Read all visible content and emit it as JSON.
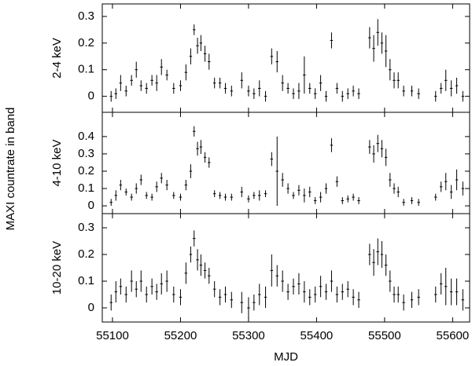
{
  "ylabel": "MAXI countrate in band",
  "chart_data": [
    {
      "type": "errorbar",
      "ylabel": "2-4 keV",
      "color": "#000000",
      "xerr": 2,
      "xlim": [
        55085,
        55625
      ],
      "xticks": [
        55100,
        55200,
        55300,
        55400,
        55500,
        55600
      ],
      "ylim": [
        -0.06,
        0.347
      ],
      "yticks": [
        0,
        0.1,
        0.2,
        0.3
      ],
      "x": [
        55098,
        55105,
        55112,
        55120,
        55128,
        55135,
        55142,
        55150,
        55158,
        55165,
        55172,
        55180,
        55190,
        55200,
        55208,
        55215,
        55220,
        55225,
        55230,
        55236,
        55242,
        55250,
        55258,
        55266,
        55275,
        55290,
        55300,
        55308,
        55316,
        55325,
        55334,
        55342,
        55350,
        55358,
        55366,
        55374,
        55382,
        55390,
        55398,
        55406,
        55414,
        55422,
        55430,
        55438,
        55446,
        55454,
        55462,
        55478,
        55484,
        55490,
        55496,
        55502,
        55508,
        55514,
        55520,
        55528,
        55540,
        55550,
        55575,
        55583,
        55590,
        55598,
        55606,
        55615
      ],
      "values": [
        0.0,
        0.01,
        0.05,
        0.02,
        0.06,
        0.1,
        0.04,
        0.03,
        0.06,
        0.05,
        0.11,
        0.08,
        0.03,
        0.04,
        0.09,
        0.15,
        0.25,
        0.19,
        0.2,
        0.16,
        0.13,
        0.05,
        0.05,
        0.03,
        0.02,
        0.06,
        0.02,
        0.01,
        0.03,
        0.0,
        0.15,
        0.13,
        0.05,
        0.03,
        0.01,
        0.02,
        0.08,
        0.03,
        0.01,
        0.05,
        0.0,
        0.21,
        0.03,
        0.0,
        0.01,
        0.02,
        0.01,
        0.22,
        0.18,
        0.24,
        0.2,
        0.17,
        0.1,
        0.06,
        0.06,
        0.02,
        0.02,
        0.01,
        0.0,
        0.03,
        0.06,
        0.03,
        0.04,
        0.0
      ],
      "errors": [
        0.02,
        0.02,
        0.03,
        0.02,
        0.02,
        0.03,
        0.02,
        0.02,
        0.02,
        0.03,
        0.03,
        0.02,
        0.02,
        0.02,
        0.03,
        0.03,
        0.02,
        0.03,
        0.03,
        0.03,
        0.03,
        0.02,
        0.02,
        0.02,
        0.02,
        0.03,
        0.02,
        0.02,
        0.03,
        0.02,
        0.03,
        0.04,
        0.03,
        0.02,
        0.02,
        0.03,
        0.07,
        0.02,
        0.02,
        0.03,
        0.02,
        0.03,
        0.02,
        0.02,
        0.02,
        0.02,
        0.02,
        0.04,
        0.05,
        0.05,
        0.04,
        0.06,
        0.04,
        0.03,
        0.03,
        0.02,
        0.02,
        0.02,
        0.02,
        0.02,
        0.04,
        0.03,
        0.03,
        0.02
      ]
    },
    {
      "type": "errorbar",
      "ylabel": "4-10 keV",
      "color": "#000000",
      "xerr": 2,
      "xlim": [
        55085,
        55625
      ],
      "xticks": [
        55100,
        55200,
        55300,
        55400,
        55500,
        55600
      ],
      "ylim": [
        -0.045,
        0.54
      ],
      "yticks": [
        0,
        0.1,
        0.2,
        0.3,
        0.4
      ],
      "x": [
        55098,
        55105,
        55112,
        55120,
        55128,
        55135,
        55142,
        55150,
        55158,
        55165,
        55172,
        55180,
        55190,
        55200,
        55208,
        55215,
        55220,
        55225,
        55230,
        55236,
        55242,
        55250,
        55258,
        55266,
        55275,
        55290,
        55300,
        55308,
        55316,
        55325,
        55334,
        55342,
        55350,
        55358,
        55366,
        55374,
        55382,
        55390,
        55398,
        55406,
        55414,
        55422,
        55430,
        55438,
        55446,
        55454,
        55462,
        55478,
        55484,
        55490,
        55496,
        55502,
        55508,
        55514,
        55520,
        55528,
        55540,
        55550,
        55575,
        55583,
        55590,
        55598,
        55606,
        55615
      ],
      "values": [
        0.02,
        0.06,
        0.12,
        0.08,
        0.05,
        0.1,
        0.15,
        0.06,
        0.05,
        0.11,
        0.16,
        0.12,
        0.06,
        0.05,
        0.12,
        0.2,
        0.43,
        0.33,
        0.34,
        0.28,
        0.25,
        0.07,
        0.06,
        0.05,
        0.05,
        0.08,
        0.04,
        0.06,
        0.06,
        0.07,
        0.27,
        0.2,
        0.15,
        0.1,
        0.06,
        0.09,
        0.06,
        0.08,
        0.03,
        0.05,
        0.1,
        0.35,
        0.14,
        0.03,
        0.04,
        0.05,
        0.03,
        0.34,
        0.3,
        0.36,
        0.33,
        0.28,
        0.15,
        0.1,
        0.08,
        0.02,
        0.03,
        0.02,
        0.05,
        0.11,
        0.14,
        0.08,
        0.15,
        0.1
      ],
      "errors": [
        0.02,
        0.03,
        0.03,
        0.02,
        0.02,
        0.03,
        0.03,
        0.02,
        0.02,
        0.03,
        0.03,
        0.03,
        0.02,
        0.02,
        0.03,
        0.04,
        0.03,
        0.04,
        0.04,
        0.03,
        0.03,
        0.02,
        0.02,
        0.02,
        0.02,
        0.03,
        0.02,
        0.02,
        0.03,
        0.02,
        0.04,
        0.2,
        0.04,
        0.03,
        0.02,
        0.03,
        0.04,
        0.03,
        0.02,
        0.03,
        0.03,
        0.04,
        0.03,
        0.02,
        0.02,
        0.02,
        0.02,
        0.04,
        0.05,
        0.05,
        0.05,
        0.05,
        0.04,
        0.03,
        0.03,
        0.02,
        0.02,
        0.02,
        0.02,
        0.03,
        0.05,
        0.04,
        0.06,
        0.04
      ]
    },
    {
      "type": "errorbar",
      "ylabel": "10-20 keV",
      "xlabel": "MJD",
      "color": "#000000",
      "xerr": 2,
      "xlim": [
        55085,
        55625
      ],
      "xticks": [
        55100,
        55200,
        55300,
        55400,
        55500,
        55600
      ],
      "ylim": [
        -0.053,
        0.353
      ],
      "yticks": [
        0,
        0.1,
        0.2,
        0.3
      ],
      "x": [
        55098,
        55105,
        55112,
        55120,
        55128,
        55135,
        55142,
        55150,
        55158,
        55165,
        55172,
        55180,
        55190,
        55200,
        55208,
        55215,
        55220,
        55225,
        55230,
        55236,
        55242,
        55250,
        55258,
        55266,
        55275,
        55290,
        55300,
        55308,
        55316,
        55325,
        55334,
        55342,
        55350,
        55358,
        55366,
        55374,
        55382,
        55390,
        55398,
        55406,
        55414,
        55422,
        55430,
        55438,
        55446,
        55454,
        55462,
        55478,
        55484,
        55490,
        55496,
        55502,
        55508,
        55514,
        55520,
        55528,
        55540,
        55550,
        55575,
        55583,
        55590,
        55598,
        55606,
        55615
      ],
      "values": [
        0.02,
        0.06,
        0.08,
        0.05,
        0.1,
        0.07,
        0.1,
        0.05,
        0.08,
        0.06,
        0.09,
        0.1,
        0.05,
        0.04,
        0.13,
        0.2,
        0.26,
        0.18,
        0.16,
        0.14,
        0.12,
        0.07,
        0.04,
        0.05,
        0.03,
        0.02,
        0.0,
        0.02,
        0.05,
        0.04,
        0.14,
        0.12,
        0.1,
        0.06,
        0.08,
        0.09,
        0.06,
        0.04,
        0.05,
        0.08,
        0.06,
        0.1,
        0.05,
        0.06,
        0.07,
        0.04,
        0.03,
        0.2,
        0.17,
        0.21,
        0.2,
        0.16,
        0.1,
        0.05,
        0.05,
        0.02,
        0.03,
        0.04,
        0.05,
        0.09,
        0.08,
        0.06,
        0.06,
        0.03
      ],
      "errors": [
        0.03,
        0.04,
        0.03,
        0.03,
        0.04,
        0.03,
        0.04,
        0.03,
        0.03,
        0.03,
        0.04,
        0.04,
        0.03,
        0.03,
        0.04,
        0.03,
        0.03,
        0.04,
        0.04,
        0.03,
        0.03,
        0.03,
        0.03,
        0.03,
        0.03,
        0.04,
        0.04,
        0.03,
        0.04,
        0.04,
        0.06,
        0.04,
        0.04,
        0.03,
        0.03,
        0.04,
        0.04,
        0.03,
        0.03,
        0.04,
        0.03,
        0.04,
        0.03,
        0.03,
        0.03,
        0.03,
        0.03,
        0.04,
        0.05,
        0.05,
        0.05,
        0.04,
        0.04,
        0.03,
        0.03,
        0.03,
        0.03,
        0.03,
        0.03,
        0.04,
        0.07,
        0.05,
        0.05,
        0.04
      ]
    }
  ]
}
